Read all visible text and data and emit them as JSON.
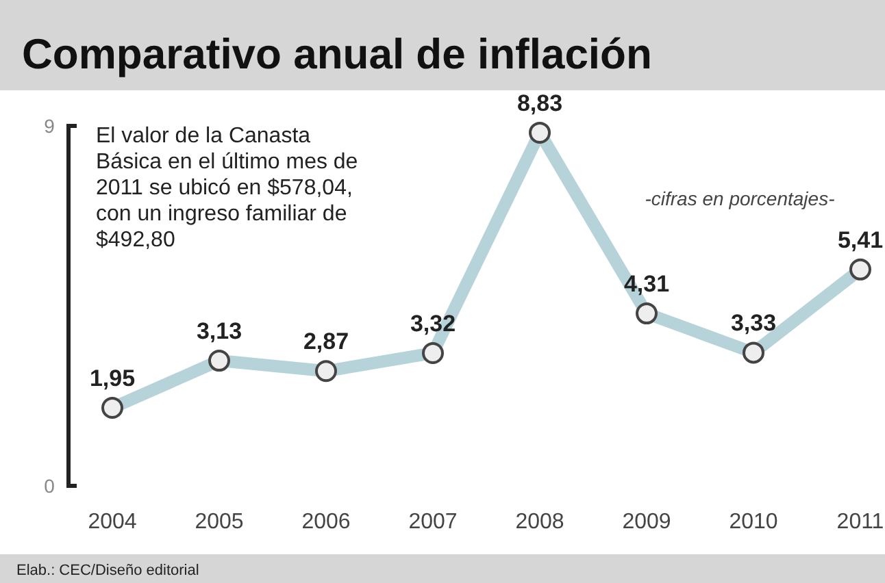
{
  "chart_data": {
    "type": "line",
    "title": "Comparativo anual de inflación",
    "categories": [
      "2004",
      "2005",
      "2006",
      "2007",
      "2008",
      "2009",
      "2010",
      "2011"
    ],
    "series": [
      {
        "color": "#b7d3da",
        "values": [
          1.95,
          3.13,
          2.87,
          3.32,
          8.83,
          4.31,
          3.33,
          5.41
        ],
        "value_labels": [
          "1,95",
          "3,13",
          "2,87",
          "3,32",
          "8,83",
          "4,31",
          "3,33",
          "5,41"
        ]
      }
    ],
    "ylim": [
      0,
      9
    ],
    "yticks": [
      0,
      9
    ],
    "marker": "circle",
    "grid": false,
    "annotations": [
      "El valor de la Canasta Básica en el último mes de 2011 se ubicó en $578,04, con un ingreso familiar de $492,80",
      "-cifras en porcentajes-",
      "Elab.: CEC/Diseño editorial"
    ]
  }
}
